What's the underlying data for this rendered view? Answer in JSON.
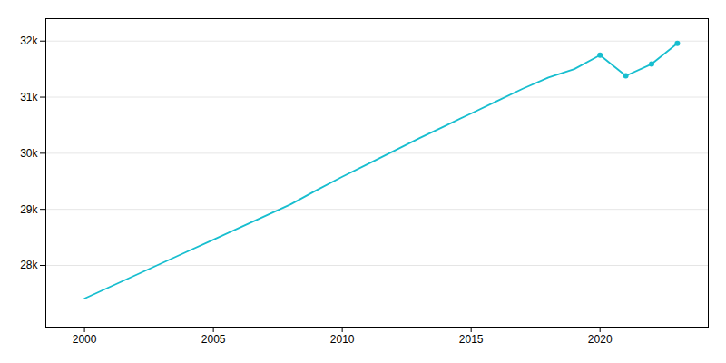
{
  "chart_data": {
    "type": "line",
    "x": [
      2000,
      2001,
      2002,
      2003,
      2004,
      2005,
      2006,
      2007,
      2008,
      2009,
      2010,
      2011,
      2012,
      2013,
      2014,
      2015,
      2016,
      2017,
      2018,
      2019,
      2020,
      2021,
      2022,
      2023
    ],
    "series": [
      {
        "type": "line",
        "color": "#17BECF",
        "values": [
          27410,
          27620,
          27830,
          28040,
          28250,
          28460,
          28670,
          28880,
          29090,
          29340,
          29580,
          29810,
          30040,
          30270,
          30490,
          30710,
          30930,
          31150,
          31350,
          31500,
          31750,
          31380,
          31590,
          31960
        ]
      },
      {
        "type": "scatter",
        "color": "#17BECF",
        "marker": "circle",
        "x": [
          2020,
          2021,
          2022,
          2023
        ],
        "values": [
          31750,
          31380,
          31590,
          31960
        ]
      }
    ],
    "xlim": [
      1998.5,
      2024.2
    ],
    "xticks": [
      2000,
      2005,
      2010,
      2015,
      2020
    ],
    "ylim": [
      26900,
      32400
    ],
    "yticks": [
      {
        "value": 28000,
        "label": "28k"
      },
      {
        "value": 29000,
        "label": "29k"
      },
      {
        "value": 30000,
        "label": "30k"
      },
      {
        "value": 31000,
        "label": "31k"
      },
      {
        "value": 32000,
        "label": "32k"
      }
    ],
    "grid": "y"
  }
}
